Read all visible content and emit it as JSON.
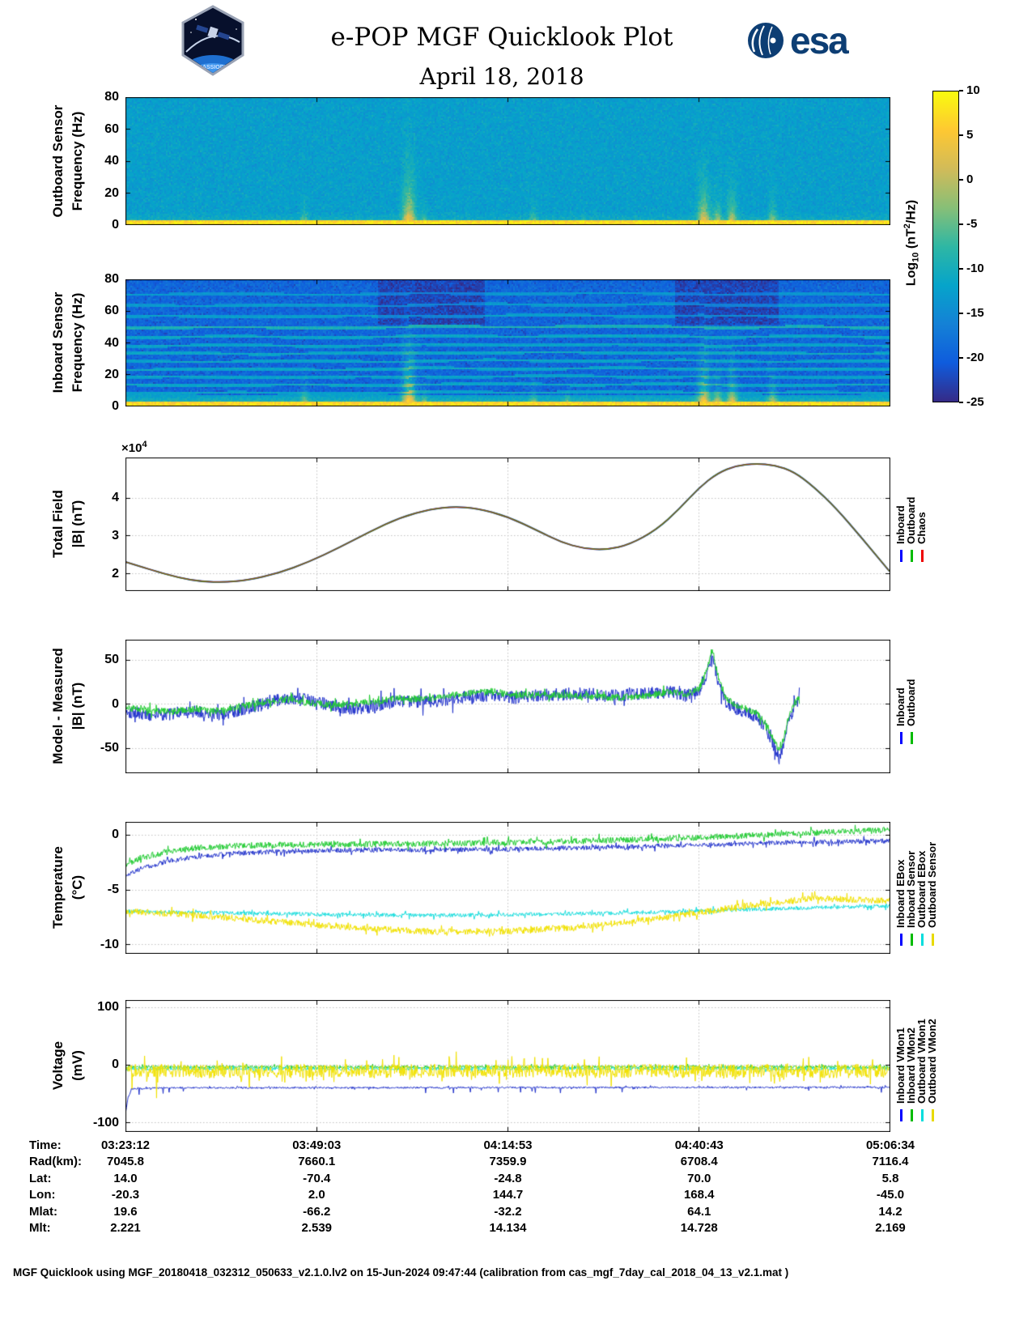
{
  "header": {
    "title": "e-POP MGF Quicklook Plot",
    "date": "April 18, 2018",
    "esa_text": "esa",
    "patch_text": "CASSIOPE"
  },
  "colorbar": {
    "label_prefix": "Log",
    "label_sub": "10",
    "label_mid": " (nT",
    "label_sup": "2",
    "label_suffix": "/Hz)",
    "ticks": [
      "10",
      "5",
      "0",
      "-5",
      "-10",
      "-15",
      "-20",
      "-25"
    ],
    "tick_values": [
      10,
      5,
      0,
      -5,
      -10,
      -15,
      -20,
      -25
    ],
    "range": [
      -25,
      10
    ],
    "colors": [
      "#352a87",
      "#0f5cdd",
      "#1481d6",
      "#06a4ca",
      "#2eb7a4",
      "#87bf77",
      "#d1bb59",
      "#fec832",
      "#f9fb0e"
    ]
  },
  "time_axis": {
    "ticks": [
      "03:23:12",
      "03:49:03",
      "04:14:53",
      "04:40:43",
      "05:06:34"
    ]
  },
  "ephemeris": {
    "rows": [
      {
        "label": "Time:",
        "values": [
          "03:23:12",
          "03:49:03",
          "04:14:53",
          "04:40:43",
          "05:06:34"
        ]
      },
      {
        "label": "Rad(km):",
        "values": [
          "7045.8",
          "7660.1",
          "7359.9",
          "6708.4",
          "7116.4"
        ]
      },
      {
        "label": "Lat:",
        "values": [
          "14.0",
          "-70.4",
          "-24.8",
          "70.0",
          "5.8"
        ]
      },
      {
        "label": "Lon:",
        "values": [
          "-20.3",
          "2.0",
          "144.7",
          "168.4",
          "-45.0"
        ]
      },
      {
        "label": "Mlat:",
        "values": [
          "19.6",
          "-66.2",
          "-32.2",
          "64.1",
          "14.2"
        ]
      },
      {
        "label": "Mlt:",
        "values": [
          "2.221",
          "2.539",
          "14.134",
          "14.728",
          "2.169"
        ]
      }
    ]
  },
  "footer": "MGF Quicklook using MGF_20180418_032312_050633_v2.1.0.lv2 on 15-Jun-2024 09:47:44 (calibration from cas_mgf_7day_cal_2018_04_13_v2.1.mat )",
  "chart_data": [
    {
      "panel": "outboard-spectrogram",
      "type": "heatmap",
      "ylabel1": "Outboard Sensor",
      "ylabel2": "Frequency (Hz)",
      "ylim": [
        0,
        80
      ],
      "yticks": [
        0,
        20,
        40,
        60,
        80
      ],
      "value_units": "Log10 nT2/Hz",
      "value_range": [
        -25,
        10
      ],
      "background_level": -12.5,
      "noise_sigma": 1.3,
      "low_band_hz": 3,
      "low_band_level": 5.5,
      "low_glow_hz": 8,
      "low_glow_coef": 0.35,
      "bursts": [
        {
          "x": 0.233,
          "amp": 9,
          "fmax": 14,
          "width": 0.0035
        },
        {
          "x": 0.37,
          "amp": 18,
          "fmax": 38,
          "width": 0.006
        },
        {
          "x": 0.39,
          "amp": 8,
          "fmax": 12,
          "width": 0.003
        },
        {
          "x": 0.534,
          "amp": 8,
          "fmax": 13,
          "width": 0.0035
        },
        {
          "x": 0.6,
          "amp": 5,
          "fmax": 8,
          "width": 0.003
        },
        {
          "x": 0.757,
          "amp": 17,
          "fmax": 30,
          "width": 0.0055
        },
        {
          "x": 0.775,
          "amp": 12,
          "fmax": 20,
          "width": 0.004
        },
        {
          "x": 0.794,
          "amp": 14,
          "fmax": 26,
          "width": 0.0045
        },
        {
          "x": 0.847,
          "amp": 11,
          "fmax": 18,
          "width": 0.004
        }
      ]
    },
    {
      "panel": "inboard-spectrogram",
      "type": "heatmap",
      "ylabel1": "Inboard Sensor",
      "ylabel2": "Frequency (Hz)",
      "ylim": [
        0,
        80
      ],
      "yticks": [
        0,
        20,
        40,
        60,
        80
      ],
      "value_units": "Log10 nT2/Hz",
      "value_range": [
        -25,
        10
      ],
      "background_level": -19.5,
      "noise_sigma": 1.6,
      "low_band_hz": 2.5,
      "low_band_level": 5.5,
      "low_region_hz": 7,
      "low_region_level": -9.5,
      "interference_lines": [
        {
          "f": 8,
          "level": -11
        },
        {
          "f": 13,
          "level": -10.5
        },
        {
          "f": 18,
          "level": -11
        },
        {
          "f": 23,
          "level": -10.5
        },
        {
          "f": 28,
          "level": -11
        },
        {
          "f": 33,
          "level": -10.5
        },
        {
          "f": 38,
          "level": -11
        },
        {
          "f": 44,
          "level": -10.5
        },
        {
          "f": 50,
          "level": -8.5
        },
        {
          "f": 57,
          "level": -11.5
        },
        {
          "f": 64,
          "level": -12
        },
        {
          "f": 71,
          "level": -12.5
        }
      ],
      "dark_patches": [
        {
          "x0": 0.33,
          "x1": 0.47,
          "f0": 52,
          "delta": -3.2
        },
        {
          "x0": 0.72,
          "x1": 0.855,
          "f0": 52,
          "delta": -3.2
        }
      ],
      "bursts": [
        {
          "x": 0.233,
          "amp": 10,
          "fmax": 16,
          "width": 0.0035
        },
        {
          "x": 0.37,
          "amp": 19,
          "fmax": 42,
          "width": 0.006
        },
        {
          "x": 0.39,
          "amp": 9,
          "fmax": 14,
          "width": 0.003
        },
        {
          "x": 0.534,
          "amp": 9,
          "fmax": 14,
          "width": 0.0035
        },
        {
          "x": 0.578,
          "amp": 10,
          "fmax": 10,
          "width": 0.003
        },
        {
          "x": 0.757,
          "amp": 18,
          "fmax": 34,
          "width": 0.0055
        },
        {
          "x": 0.775,
          "amp": 13,
          "fmax": 22,
          "width": 0.004
        },
        {
          "x": 0.794,
          "amp": 15,
          "fmax": 28,
          "width": 0.0045
        },
        {
          "x": 0.847,
          "amp": 12,
          "fmax": 20,
          "width": 0.004
        }
      ]
    },
    {
      "panel": "total-field",
      "type": "line",
      "ylabel1": "Total Field",
      "ylabel2": "|B| (nT)",
      "exp_base": "×10",
      "exp_sup": "4",
      "ylim": [
        15500,
        50600
      ],
      "yticks": [
        20000,
        30000,
        40000
      ],
      "ytick_labels": [
        "2",
        "3",
        "4"
      ],
      "x": [
        0,
        0.035,
        0.07,
        0.1,
        0.13,
        0.16,
        0.2,
        0.24,
        0.28,
        0.32,
        0.36,
        0.4,
        0.43,
        0.46,
        0.5,
        0.54,
        0.57,
        0.6,
        0.63,
        0.66,
        0.695,
        0.725,
        0.75,
        0.775,
        0.8,
        0.825,
        0.85,
        0.875,
        0.9,
        0.93,
        0.965,
        1.0
      ],
      "y_shared_1e4": [
        2.3,
        2.08,
        1.88,
        1.78,
        1.76,
        1.82,
        2.0,
        2.3,
        2.68,
        3.1,
        3.48,
        3.7,
        3.76,
        3.72,
        3.5,
        3.12,
        2.82,
        2.65,
        2.62,
        2.76,
        3.15,
        3.7,
        4.25,
        4.65,
        4.85,
        4.9,
        4.86,
        4.68,
        4.3,
        3.72,
        2.9,
        2.05
      ],
      "series": [
        {
          "name": "Inboard",
          "color": "#2222cc",
          "width": 2.0
        },
        {
          "name": "Outboard",
          "color": "#22aa22",
          "width": 1.5
        },
        {
          "name": "Chaos",
          "color": "#bb3311",
          "width": 0.9
        }
      ],
      "legend": [
        {
          "label": "Inboard",
          "color": "#0000ff"
        },
        {
          "label": "Outboard",
          "color": "#00bb00"
        },
        {
          "label": "Chaos",
          "color": "#ee0000"
        }
      ]
    },
    {
      "panel": "model-measured",
      "type": "noisy-line",
      "ylabel1": "Model - Measured",
      "ylabel2": "|B| (nT)",
      "ylim": [
        -78,
        73
      ],
      "yticks": [
        -50,
        0,
        50
      ],
      "x": [
        0,
        0.03,
        0.06,
        0.09,
        0.12,
        0.15,
        0.18,
        0.21,
        0.24,
        0.27,
        0.3,
        0.33,
        0.36,
        0.39,
        0.42,
        0.45,
        0.48,
        0.51,
        0.54,
        0.57,
        0.6,
        0.63,
        0.66,
        0.69,
        0.715,
        0.735,
        0.75,
        0.76,
        0.768,
        0.775,
        0.785,
        0.795,
        0.81,
        0.825,
        0.838,
        0.848,
        0.856,
        0.862,
        0.868,
        0.875,
        0.882
      ],
      "series": [
        {
          "name": "Inboard",
          "color": "#2233cc",
          "noise": 7.5,
          "width": 1,
          "y": [
            -8,
            -13,
            -11,
            -9,
            -12,
            -7,
            0,
            6,
            4,
            -2,
            -6,
            -2,
            4,
            2,
            5,
            8,
            10,
            7,
            9,
            11,
            12,
            9,
            10,
            12,
            13,
            9,
            14,
            30,
            58,
            28,
            4,
            -4,
            -8,
            -14,
            -28,
            -48,
            -62,
            -45,
            -20,
            -4,
            3
          ]
        },
        {
          "name": "Outboard",
          "color": "#22cc33",
          "noise": 4,
          "width": 1,
          "y": [
            -4,
            -7,
            -9,
            -6,
            -8,
            -3,
            2,
            5,
            1,
            -1,
            0,
            3,
            7,
            5,
            9,
            12,
            14,
            10,
            10,
            10,
            9,
            7,
            8,
            10,
            14,
            11,
            17,
            35,
            63,
            33,
            8,
            0,
            -5,
            -10,
            -22,
            -40,
            -55,
            -38,
            -14,
            0,
            6
          ]
        }
      ],
      "legend": [
        {
          "label": "Inboard",
          "color": "#0000ff"
        },
        {
          "label": "Outboard",
          "color": "#00bb00"
        }
      ]
    },
    {
      "panel": "temperature",
      "type": "noisy-line",
      "ylabel1": "Temperature",
      "ylabel2": "(°C)",
      "ylim": [
        -10.8,
        1.2
      ],
      "yticks": [
        0,
        -5,
        -10
      ],
      "x": [
        0,
        0.02,
        0.05,
        0.09,
        0.14,
        0.2,
        0.3,
        0.4,
        0.5,
        0.6,
        0.7,
        0.8,
        0.9,
        1
      ],
      "series": [
        {
          "name": "Inboard EBox",
          "color": "#2233cc",
          "noise": 0.22,
          "width": 1,
          "y": [
            -3.7,
            -3.1,
            -2.5,
            -2.0,
            -1.7,
            -1.5,
            -1.4,
            -1.35,
            -1.3,
            -1.15,
            -1.0,
            -0.8,
            -0.65,
            -0.55
          ]
        },
        {
          "name": "Inboard Sensor",
          "color": "#22cc33",
          "noise": 0.28,
          "width": 1,
          "y": [
            -2.7,
            -2.1,
            -1.6,
            -1.2,
            -1.0,
            -0.9,
            -0.85,
            -0.8,
            -0.7,
            -0.55,
            -0.35,
            -0.1,
            0.2,
            0.45
          ]
        },
        {
          "name": "Outboard EBox",
          "color": "#19dede",
          "noise": 0.18,
          "width": 1,
          "y": [
            -7.0,
            -7.0,
            -7.05,
            -7.1,
            -7.15,
            -7.2,
            -7.3,
            -7.35,
            -7.3,
            -7.2,
            -7.05,
            -6.85,
            -6.65,
            -6.5
          ]
        },
        {
          "name": "Outboard Sensor",
          "color": "#f2e200",
          "noise": 0.3,
          "width": 1,
          "y": [
            -7.0,
            -7.05,
            -7.15,
            -7.35,
            -7.6,
            -7.95,
            -8.5,
            -8.85,
            -8.8,
            -8.4,
            -7.6,
            -6.6,
            -5.8,
            -6.0
          ]
        }
      ],
      "legend": [
        {
          "label": "Inboard EBox",
          "color": "#0000ff"
        },
        {
          "label": "Inboard Sensor",
          "color": "#00bb00"
        },
        {
          "label": "Outboard EBox",
          "color": "#00dddd"
        },
        {
          "label": "Outboard Sensor",
          "color": "#e8da00"
        }
      ]
    },
    {
      "panel": "voltage",
      "type": "noisy-line",
      "ylabel1": "Voltage",
      "ylabel2": "(mV)",
      "ylim": [
        -115,
        112
      ],
      "yticks": [
        -100,
        0,
        100
      ],
      "series": [
        {
          "name": "Inboard VMon1",
          "color": "#2233cc",
          "noise": 1.5,
          "width": 1,
          "x": [
            0,
            0.003,
            0.008,
            0.05,
            0.1,
            1
          ],
          "y": [
            -85,
            -60,
            -42,
            -40,
            -40,
            -39
          ],
          "spike": {
            "p": 0.008,
            "mag": 8,
            "dir": -1
          }
        },
        {
          "name": "Inboard VMon2",
          "color": "#22cc33",
          "noise": 2.5,
          "width": 1,
          "x": [
            0,
            1
          ],
          "y": [
            -4,
            -4
          ]
        },
        {
          "name": "Outboard VMon1",
          "color": "#19dede",
          "noise": 2.5,
          "width": 1,
          "x": [
            0,
            1
          ],
          "y": [
            -7,
            -7
          ]
        },
        {
          "name": "Outboard VMon2",
          "color": "#f2e200",
          "noise": 12,
          "width": 1,
          "x": [
            0,
            1
          ],
          "y": [
            -11,
            -11
          ],
          "spike": {
            "p": 0.015,
            "mag": 22
          }
        }
      ],
      "legend": [
        {
          "label": "Inboard VMon1",
          "color": "#0000ff"
        },
        {
          "label": "Inboard VMon2",
          "color": "#00bb00"
        },
        {
          "label": "Outboard VMon1",
          "color": "#00dddd"
        },
        {
          "label": "Outboard VMon2",
          "color": "#e8da00"
        }
      ]
    }
  ]
}
